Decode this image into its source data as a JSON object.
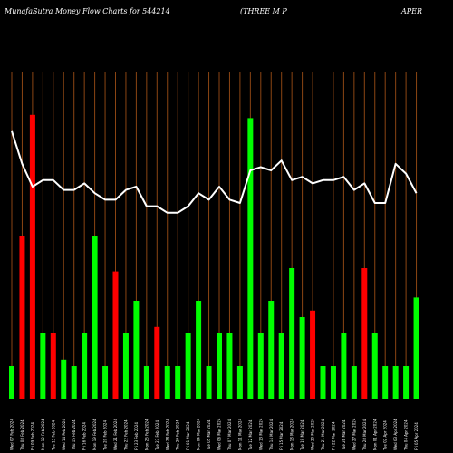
{
  "chart_data": {
    "type": "bar",
    "title": "MunafaSutra  Money Flow  Charts for 544214",
    "subtitle_left": "(THREE M P",
    "subtitle_right": "APER",
    "colors": {
      "background": "#000000",
      "grid": "#8B4513",
      "up": "#00ff00",
      "down": "#ff0000",
      "line": "#ffffff"
    },
    "grid": true,
    "categories": [
      "Wed 07 Feb 2024",
      "Thu 08 Feb 2024",
      "Fri 09 Feb 2024",
      "Mon 12 Feb 2024",
      "Tue 13 Feb 2024",
      "Wed 14 Feb 2024",
      "Thu 15 Feb 2024",
      "Fri 16 Feb 2024",
      "Mon 19 Feb 2024",
      "Tue 20 Feb 2024",
      "Wed 21 Feb 2024",
      "Thu 22 Feb 2024",
      "Fri 23 Feb 2024",
      "Mon 26 Feb 2024",
      "Tue 27 Feb 2024",
      "Wed 28 Feb 2024",
      "Thu 29 Feb 2024",
      "Fri 01 Mar 2024",
      "Mon 04 Mar 2024",
      "Tue 05 Mar 2024",
      "Wed 06 Mar 2024",
      "Thu 07 Mar 2024",
      "Mon 11 Mar 2024",
      "Tue 12 Mar 2024",
      "Wed 13 Mar 2024",
      "Thu 14 Mar 2024",
      "Fri 15 Mar 2024",
      "Mon 18 Mar 2024",
      "Tue 19 Mar 2024",
      "Wed 20 Mar 2024",
      "Thu 21 Mar 2024",
      "Fri 22 Mar 2024",
      "Tue 26 Mar 2024",
      "Wed 27 Mar 2024",
      "Thu 28 Mar 2024",
      "Mon 01 Apr 2024",
      "Tue 02 Apr 2024",
      "Wed 03 Apr 2024",
      "Thu 04 Apr 2024",
      "Fri 05 Apr 2024"
    ],
    "bar_values": [
      10,
      50,
      87,
      20,
      20,
      12,
      10,
      20,
      50,
      10,
      39,
      20,
      30,
      10,
      22,
      10,
      10,
      20,
      30,
      10,
      20,
      20,
      10,
      86,
      20,
      30,
      20,
      40,
      25,
      27,
      10,
      10,
      20,
      10,
      40,
      20,
      10,
      10,
      10,
      31
    ],
    "bar_directions": [
      "up",
      "down",
      "down",
      "up",
      "down",
      "up",
      "up",
      "up",
      "up",
      "up",
      "down",
      "up",
      "up",
      "up",
      "down",
      "up",
      "up",
      "up",
      "up",
      "up",
      "up",
      "up",
      "up",
      "up",
      "up",
      "up",
      "up",
      "up",
      "up",
      "down",
      "up",
      "up",
      "up",
      "up",
      "down",
      "up",
      "up",
      "up",
      "up",
      "up"
    ],
    "line_values": [
      82,
      72,
      65,
      67,
      67,
      64,
      64,
      66,
      63,
      61,
      61,
      64,
      65,
      59,
      59,
      57,
      57,
      59,
      63,
      61,
      65,
      61,
      60,
      70,
      71,
      70,
      73,
      67,
      68,
      66,
      67,
      67,
      68,
      64,
      66,
      60,
      60,
      72,
      69,
      63
    ],
    "ylim": [
      0,
      100
    ]
  }
}
